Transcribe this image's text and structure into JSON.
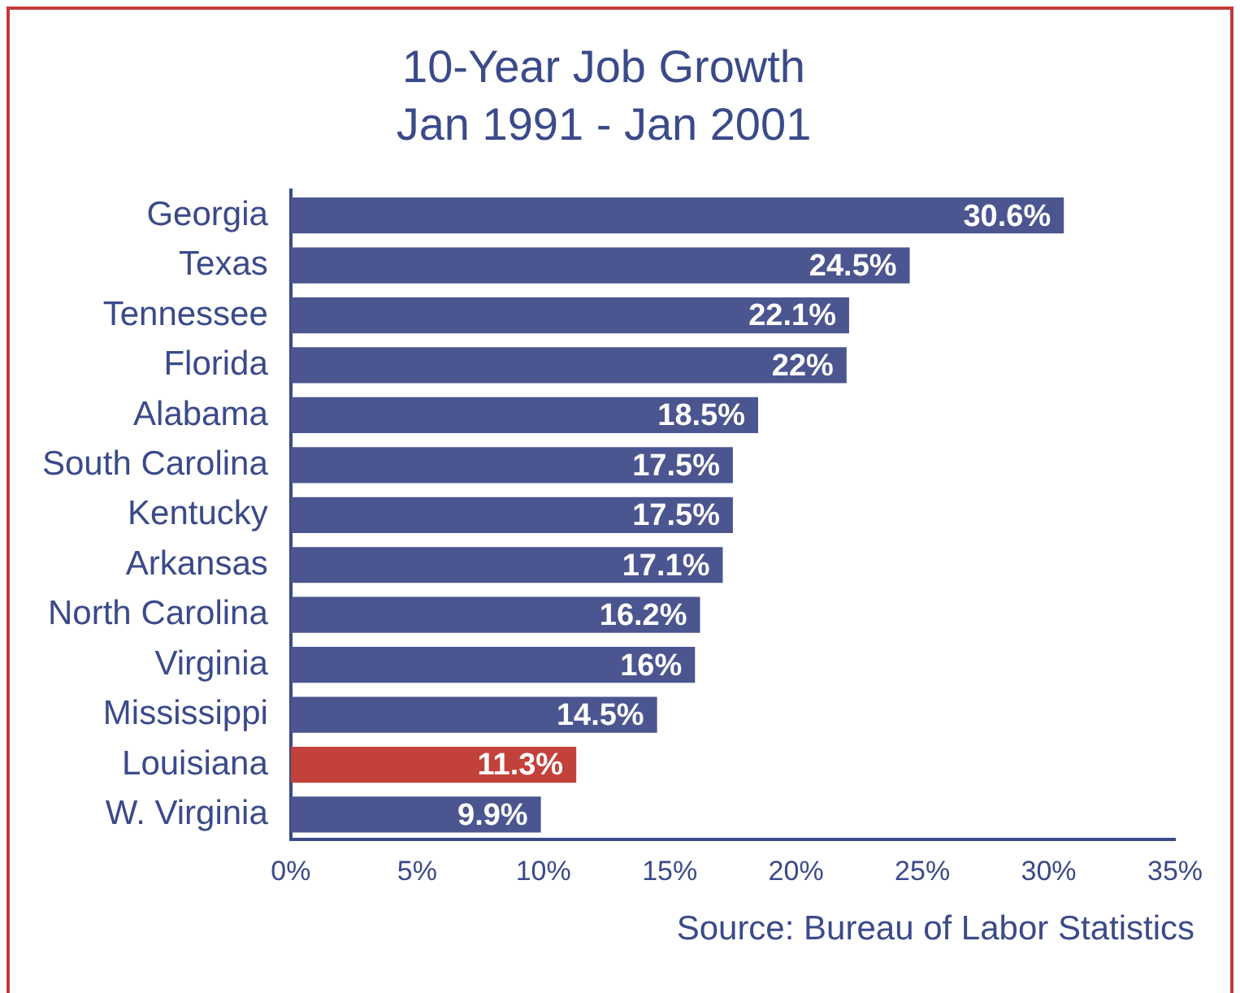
{
  "chart_data": {
    "type": "bar",
    "orientation": "horizontal",
    "title": "10-Year Job Growth",
    "subtitle": "Jan 1991 - Jan 2001",
    "categories": [
      "Georgia",
      "Texas",
      "Tennessee",
      "Florida",
      "Alabama",
      "South Carolina",
      "Kentucky",
      "Arkansas",
      "North Carolina",
      "Virginia",
      "Mississippi",
      "Louisiana",
      "W. Virginia"
    ],
    "values": [
      30.6,
      24.5,
      22.1,
      22,
      18.5,
      17.5,
      17.5,
      17.1,
      16.2,
      16,
      14.5,
      11.3,
      9.9
    ],
    "value_labels": [
      "30.6%",
      "24.5%",
      "22.1%",
      "22%",
      "18.5%",
      "17.5%",
      "17.5%",
      "17.1%",
      "16.2%",
      "16%",
      "14.5%",
      "11.3%",
      "9.9%"
    ],
    "colors": [
      "#4b5590",
      "#4b5590",
      "#4b5590",
      "#4b5590",
      "#4b5590",
      "#4b5590",
      "#4b5590",
      "#4b5590",
      "#4b5590",
      "#4b5590",
      "#4b5590",
      "#c2413a",
      "#4b5590"
    ],
    "xlim": [
      0,
      35
    ],
    "xticks": [
      {
        "value": 0,
        "label": "0%"
      },
      {
        "value": 5,
        "label": "5%"
      },
      {
        "value": 10,
        "label": "10%"
      },
      {
        "value": 15,
        "label": "15%"
      },
      {
        "value": 20,
        "label": "20%"
      },
      {
        "value": 25,
        "label": "25%"
      },
      {
        "value": 30,
        "label": "30%"
      },
      {
        "value": 35,
        "label": "35%"
      }
    ],
    "grid": false,
    "legend": false,
    "annotations": [
      "Source:  Bureau of Labor Statistics"
    ]
  }
}
